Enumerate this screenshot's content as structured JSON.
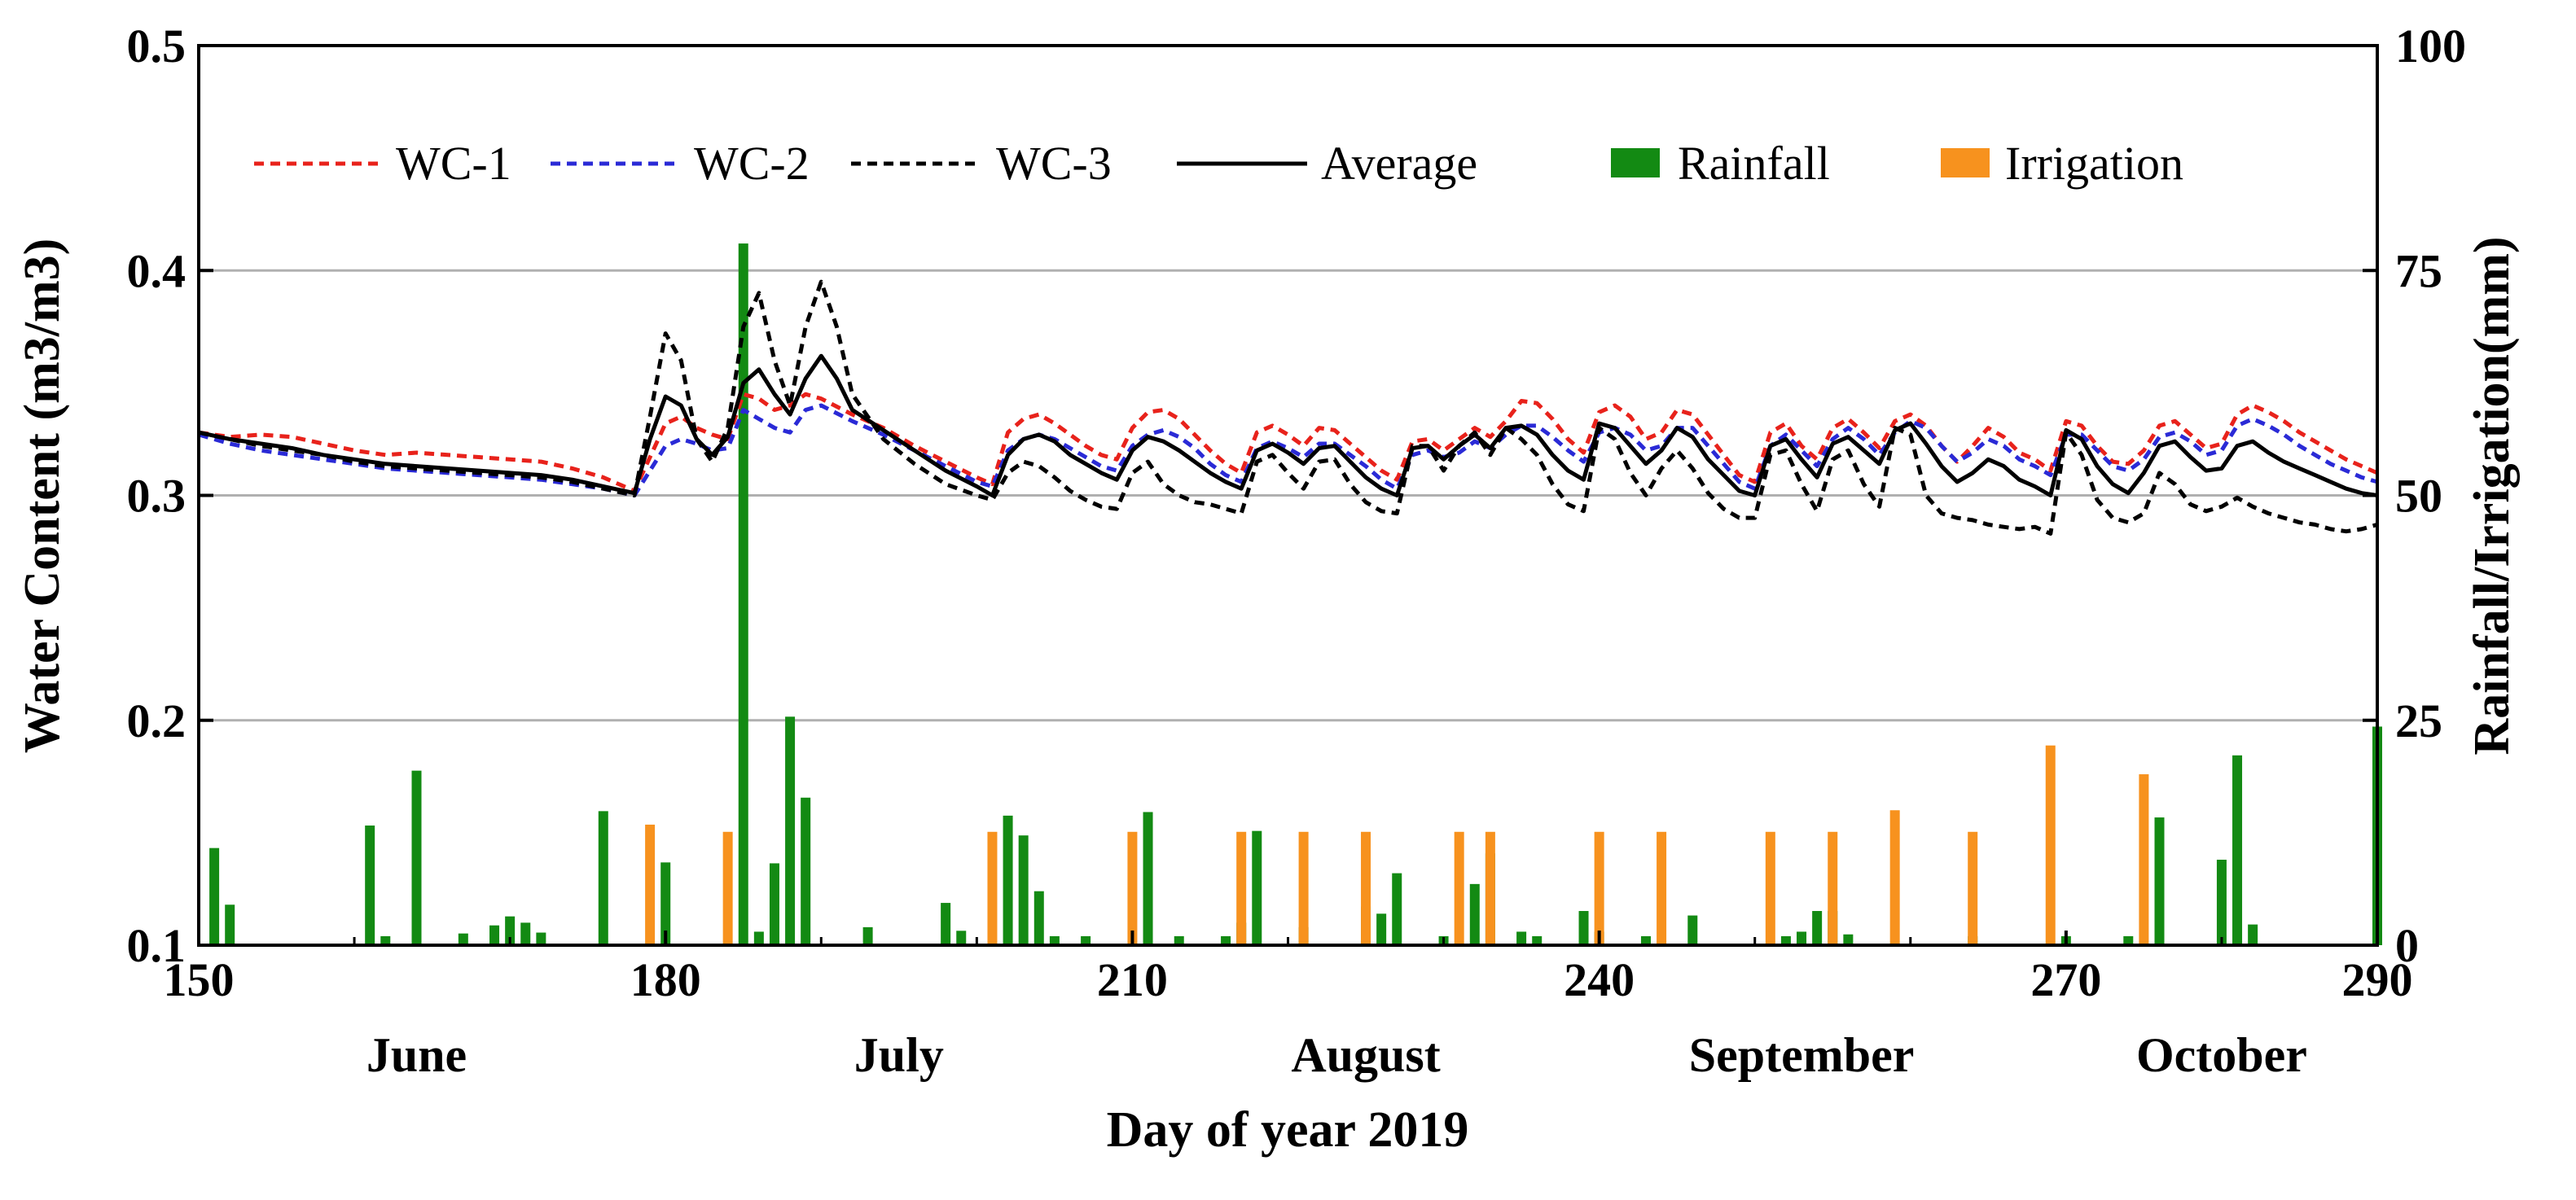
{
  "chart_data": {
    "type": "line",
    "title": "",
    "xlabel": "Day of year 2019",
    "ylabel": "Water Content (m3/m3)",
    "y2label": "Rainfall/Irrigation(mm)",
    "xlim": [
      150,
      290
    ],
    "ylim": [
      0.1,
      0.5
    ],
    "y2lim": [
      0,
      100
    ],
    "x_ticks": [
      150,
      180,
      210,
      240,
      270,
      290
    ],
    "y_ticks": [
      0.1,
      0.2,
      0.3,
      0.4,
      0.5
    ],
    "y2_ticks": [
      0,
      25,
      50,
      75,
      100
    ],
    "grid": "horizontal",
    "legend_position": "top",
    "months": [
      {
        "label": "June",
        "center_day": 164
      },
      {
        "label": "July",
        "center_day": 195
      },
      {
        "label": "August",
        "center_day": 225
      },
      {
        "label": "September",
        "center_day": 253
      },
      {
        "label": "October",
        "center_day": 280
      }
    ],
    "series": [
      {
        "name": "WC-1",
        "style": "dashed",
        "color": "#e8221b",
        "x": [
          150,
          152,
          154,
          156,
          158,
          160,
          162,
          164,
          166,
          168,
          170,
          172,
          174,
          176,
          178,
          180,
          181,
          182,
          183,
          184,
          185,
          186,
          187,
          188,
          189,
          190,
          192,
          194,
          196,
          198,
          200,
          201,
          202,
          203,
          204,
          205,
          206,
          207,
          208,
          209,
          210,
          211,
          212,
          213,
          214,
          215,
          216,
          217,
          218,
          219,
          220,
          221,
          222,
          223,
          224,
          225,
          226,
          227,
          228,
          229,
          230,
          231,
          232,
          233,
          234,
          235,
          236,
          237,
          238,
          239,
          240,
          241,
          242,
          243,
          244,
          245,
          246,
          247,
          248,
          249,
          250,
          251,
          252,
          253,
          254,
          255,
          256,
          257,
          258,
          259,
          260,
          261,
          262,
          263,
          264,
          265,
          266,
          267,
          268,
          269,
          270,
          271,
          272,
          273,
          274,
          275,
          276,
          277,
          278,
          279,
          280,
          281,
          282,
          283,
          284,
          285,
          286,
          287,
          288,
          289,
          290
        ],
        "values": [
          0.328,
          0.326,
          0.327,
          0.326,
          0.323,
          0.32,
          0.318,
          0.319,
          0.318,
          0.317,
          0.316,
          0.315,
          0.312,
          0.308,
          0.302,
          0.332,
          0.335,
          0.33,
          0.327,
          0.325,
          0.345,
          0.343,
          0.338,
          0.34,
          0.345,
          0.343,
          0.336,
          0.33,
          0.322,
          0.315,
          0.308,
          0.305,
          0.328,
          0.334,
          0.336,
          0.332,
          0.327,
          0.322,
          0.318,
          0.316,
          0.33,
          0.337,
          0.338,
          0.334,
          0.327,
          0.32,
          0.314,
          0.31,
          0.328,
          0.331,
          0.327,
          0.322,
          0.33,
          0.329,
          0.323,
          0.317,
          0.311,
          0.307,
          0.324,
          0.325,
          0.32,
          0.325,
          0.33,
          0.326,
          0.333,
          0.342,
          0.341,
          0.334,
          0.325,
          0.319,
          0.337,
          0.34,
          0.335,
          0.325,
          0.328,
          0.338,
          0.336,
          0.327,
          0.318,
          0.309,
          0.306,
          0.328,
          0.332,
          0.322,
          0.316,
          0.33,
          0.334,
          0.328,
          0.321,
          0.333,
          0.336,
          0.331,
          0.322,
          0.315,
          0.322,
          0.33,
          0.326,
          0.319,
          0.316,
          0.311,
          0.333,
          0.331,
          0.322,
          0.315,
          0.314,
          0.32,
          0.331,
          0.333,
          0.327,
          0.321,
          0.323,
          0.336,
          0.34,
          0.337,
          0.333,
          0.328,
          0.324,
          0.32,
          0.316,
          0.313,
          0.31
        ]
      },
      {
        "name": "WC-2",
        "style": "dashed",
        "color": "#2a2ad6",
        "x": [
          150,
          152,
          154,
          156,
          158,
          160,
          162,
          164,
          166,
          168,
          170,
          172,
          174,
          176,
          178,
          180,
          181,
          182,
          183,
          184,
          185,
          186,
          187,
          188,
          189,
          190,
          192,
          194,
          196,
          198,
          200,
          201,
          202,
          203,
          204,
          205,
          206,
          207,
          208,
          209,
          210,
          211,
          212,
          213,
          214,
          215,
          216,
          217,
          218,
          219,
          220,
          221,
          222,
          223,
          224,
          225,
          226,
          227,
          228,
          229,
          230,
          231,
          232,
          233,
          234,
          235,
          236,
          237,
          238,
          239,
          240,
          241,
          242,
          243,
          244,
          245,
          246,
          247,
          248,
          249,
          250,
          251,
          252,
          253,
          254,
          255,
          256,
          257,
          258,
          259,
          260,
          261,
          262,
          263,
          264,
          265,
          266,
          267,
          268,
          269,
          270,
          271,
          272,
          273,
          274,
          275,
          276,
          277,
          278,
          279,
          280,
          281,
          282,
          283,
          284,
          285,
          286,
          287,
          288,
          289,
          290
        ],
        "values": [
          0.327,
          0.323,
          0.32,
          0.318,
          0.316,
          0.314,
          0.312,
          0.311,
          0.31,
          0.309,
          0.308,
          0.307,
          0.305,
          0.303,
          0.3,
          0.322,
          0.325,
          0.323,
          0.32,
          0.321,
          0.338,
          0.334,
          0.33,
          0.328,
          0.338,
          0.34,
          0.333,
          0.327,
          0.32,
          0.313,
          0.306,
          0.304,
          0.32,
          0.325,
          0.327,
          0.325,
          0.321,
          0.317,
          0.313,
          0.311,
          0.322,
          0.327,
          0.329,
          0.326,
          0.321,
          0.314,
          0.309,
          0.306,
          0.321,
          0.324,
          0.321,
          0.317,
          0.323,
          0.323,
          0.318,
          0.313,
          0.307,
          0.303,
          0.318,
          0.32,
          0.317,
          0.319,
          0.324,
          0.321,
          0.327,
          0.331,
          0.331,
          0.326,
          0.32,
          0.315,
          0.328,
          0.33,
          0.327,
          0.32,
          0.322,
          0.33,
          0.33,
          0.322,
          0.314,
          0.306,
          0.303,
          0.322,
          0.327,
          0.32,
          0.313,
          0.325,
          0.33,
          0.325,
          0.318,
          0.328,
          0.333,
          0.33,
          0.322,
          0.315,
          0.319,
          0.325,
          0.322,
          0.316,
          0.313,
          0.309,
          0.327,
          0.327,
          0.32,
          0.313,
          0.311,
          0.316,
          0.326,
          0.328,
          0.324,
          0.318,
          0.32,
          0.331,
          0.334,
          0.331,
          0.327,
          0.322,
          0.318,
          0.314,
          0.311,
          0.308,
          0.306
        ]
      },
      {
        "name": "WC-3",
        "style": "dashed",
        "color": "#000000",
        "x": [
          150,
          152,
          154,
          156,
          158,
          160,
          162,
          164,
          166,
          168,
          170,
          172,
          174,
          176,
          178,
          179,
          180,
          181,
          182,
          183,
          184,
          185,
          186,
          187,
          188,
          189,
          190,
          191,
          192,
          194,
          196,
          198,
          200,
          201,
          202,
          203,
          204,
          205,
          206,
          207,
          208,
          209,
          210,
          211,
          212,
          213,
          214,
          215,
          216,
          217,
          218,
          219,
          220,
          221,
          222,
          223,
          224,
          225,
          226,
          227,
          228,
          229,
          230,
          231,
          232,
          233,
          234,
          235,
          236,
          237,
          238,
          239,
          240,
          241,
          242,
          243,
          244,
          245,
          246,
          247,
          248,
          249,
          250,
          251,
          252,
          253,
          254,
          255,
          256,
          257,
          258,
          259,
          260,
          261,
          262,
          263,
          264,
          265,
          266,
          267,
          268,
          269,
          270,
          271,
          272,
          273,
          274,
          275,
          276,
          277,
          278,
          279,
          280,
          281,
          282,
          283,
          284,
          285,
          286,
          287,
          288,
          289,
          290
        ],
        "values": [
          0.328,
          0.325,
          0.322,
          0.32,
          0.318,
          0.315,
          0.313,
          0.312,
          0.311,
          0.31,
          0.309,
          0.308,
          0.306,
          0.303,
          0.3,
          0.335,
          0.372,
          0.36,
          0.325,
          0.315,
          0.33,
          0.375,
          0.39,
          0.36,
          0.34,
          0.375,
          0.395,
          0.375,
          0.345,
          0.325,
          0.314,
          0.305,
          0.3,
          0.298,
          0.31,
          0.315,
          0.313,
          0.308,
          0.302,
          0.298,
          0.295,
          0.294,
          0.31,
          0.315,
          0.305,
          0.3,
          0.297,
          0.296,
          0.294,
          0.292,
          0.315,
          0.318,
          0.31,
          0.303,
          0.315,
          0.316,
          0.305,
          0.297,
          0.293,
          0.292,
          0.322,
          0.322,
          0.311,
          0.322,
          0.328,
          0.318,
          0.33,
          0.325,
          0.318,
          0.305,
          0.296,
          0.293,
          0.33,
          0.325,
          0.31,
          0.3,
          0.312,
          0.32,
          0.312,
          0.301,
          0.294,
          0.29,
          0.29,
          0.318,
          0.32,
          0.305,
          0.293,
          0.316,
          0.32,
          0.305,
          0.295,
          0.33,
          0.327,
          0.3,
          0.292,
          0.29,
          0.289,
          0.287,
          0.286,
          0.285,
          0.286,
          0.283,
          0.328,
          0.318,
          0.298,
          0.29,
          0.288,
          0.292,
          0.31,
          0.305,
          0.296,
          0.293,
          0.295,
          0.299,
          0.295,
          0.292,
          0.29,
          0.288,
          0.287,
          0.285,
          0.284,
          0.285,
          0.287
        ]
      },
      {
        "name": "Average",
        "style": "solid",
        "color": "#000000",
        "x": [
          150,
          152,
          154,
          156,
          158,
          160,
          162,
          164,
          166,
          168,
          170,
          172,
          174,
          176,
          178,
          179,
          180,
          181,
          182,
          183,
          184,
          185,
          186,
          187,
          188,
          189,
          190,
          191,
          192,
          194,
          196,
          198,
          200,
          201,
          202,
          203,
          204,
          205,
          206,
          207,
          208,
          209,
          210,
          211,
          212,
          213,
          214,
          215,
          216,
          217,
          218,
          219,
          220,
          221,
          222,
          223,
          224,
          225,
          226,
          227,
          228,
          229,
          230,
          231,
          232,
          233,
          234,
          235,
          236,
          237,
          238,
          239,
          240,
          241,
          242,
          243,
          244,
          245,
          246,
          247,
          248,
          249,
          250,
          251,
          252,
          253,
          254,
          255,
          256,
          257,
          258,
          259,
          260,
          261,
          262,
          263,
          264,
          265,
          266,
          267,
          268,
          269,
          270,
          271,
          272,
          273,
          274,
          275,
          276,
          277,
          278,
          279,
          280,
          281,
          282,
          283,
          284,
          285,
          286,
          287,
          288,
          289,
          290
        ],
        "values": [
          0.328,
          0.325,
          0.323,
          0.321,
          0.318,
          0.316,
          0.314,
          0.313,
          0.312,
          0.311,
          0.31,
          0.309,
          0.307,
          0.304,
          0.301,
          0.325,
          0.344,
          0.34,
          0.325,
          0.318,
          0.326,
          0.35,
          0.356,
          0.345,
          0.336,
          0.352,
          0.362,
          0.352,
          0.338,
          0.329,
          0.32,
          0.311,
          0.304,
          0.3,
          0.318,
          0.325,
          0.327,
          0.324,
          0.318,
          0.314,
          0.31,
          0.307,
          0.32,
          0.326,
          0.324,
          0.32,
          0.315,
          0.31,
          0.306,
          0.303,
          0.32,
          0.323,
          0.319,
          0.314,
          0.321,
          0.322,
          0.315,
          0.308,
          0.303,
          0.3,
          0.321,
          0.322,
          0.316,
          0.322,
          0.327,
          0.321,
          0.33,
          0.331,
          0.327,
          0.318,
          0.311,
          0.307,
          0.332,
          0.33,
          0.322,
          0.314,
          0.32,
          0.33,
          0.326,
          0.316,
          0.309,
          0.302,
          0.3,
          0.322,
          0.325,
          0.316,
          0.308,
          0.323,
          0.326,
          0.32,
          0.314,
          0.329,
          0.332,
          0.323,
          0.313,
          0.306,
          0.31,
          0.316,
          0.313,
          0.307,
          0.304,
          0.3,
          0.329,
          0.325,
          0.313,
          0.305,
          0.301,
          0.31,
          0.322,
          0.324,
          0.317,
          0.311,
          0.312,
          0.322,
          0.324,
          0.319,
          0.315,
          0.312,
          0.309,
          0.306,
          0.303,
          0.301,
          0.3
        ]
      },
      {
        "name": "Rainfall",
        "type": "bar",
        "axis": "right",
        "color": "#138a13",
        "x": [
          151,
          152,
          161,
          162,
          164,
          167,
          169,
          170,
          171,
          172,
          176,
          180,
          185,
          186,
          187,
          188,
          189,
          193,
          198,
          199,
          202,
          203,
          204,
          205,
          207,
          211,
          213,
          216,
          217,
          218,
          221,
          225,
          226,
          227,
          230,
          232,
          233,
          235,
          236,
          239,
          240,
          243,
          246,
          252,
          253,
          254,
          255,
          256,
          264,
          270,
          274,
          276,
          280,
          281,
          282,
          290
        ],
        "values": [
          10.8,
          4.5,
          13.3,
          1.0,
          19.4,
          1.3,
          2.2,
          3.2,
          2.5,
          1.4,
          14.9,
          9.2,
          78.0,
          1.5,
          9.1,
          25.4,
          16.4,
          2.0,
          4.7,
          1.6,
          14.4,
          12.2,
          6.0,
          1.0,
          1.0,
          14.8,
          1.0,
          1.0,
          2.5,
          12.7,
          2.0,
          4.3,
          3.5,
          8.0,
          1.0,
          6.8,
          10.2,
          1.5,
          1.0,
          3.8,
          1.5,
          1.0,
          3.3,
          1.0,
          1.5,
          3.8,
          3.8,
          1.2,
          1.0,
          1.0,
          1.0,
          14.2,
          9.5,
          21.1,
          2.3,
          24.3
        ]
      },
      {
        "name": "Irrigation",
        "type": "bar",
        "axis": "right",
        "color": "#f7921e",
        "x": [
          179,
          184,
          201,
          210,
          217,
          221,
          225,
          231,
          233,
          240,
          244,
          251,
          255,
          259,
          264,
          269,
          275
        ],
        "values": [
          13.4,
          12.6,
          12.6,
          12.6,
          12.6,
          12.6,
          12.6,
          12.6,
          12.6,
          12.6,
          12.6,
          12.6,
          12.6,
          15.0,
          12.6,
          22.2,
          19.0
        ]
      }
    ]
  }
}
